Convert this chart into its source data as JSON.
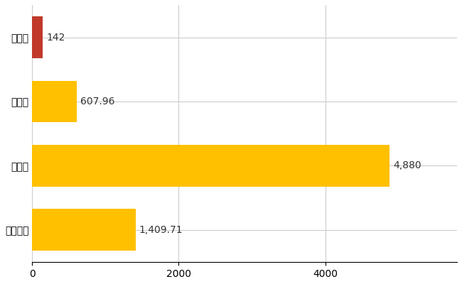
{
  "categories": [
    "那賀町",
    "県平均",
    "県最大",
    "全国平均"
  ],
  "values": [
    142,
    607.96,
    4880,
    1409.71
  ],
  "colors": [
    "#C0392B",
    "#FFC000",
    "#FFC000",
    "#FFC000"
  ],
  "labels": [
    "142",
    "607.96",
    "4,880",
    "1,409.71"
  ],
  "xlim": [
    0,
    5800
  ],
  "xticks": [
    0,
    2000,
    4000
  ],
  "grid_color": "#CCCCCC",
  "background_color": "#FFFFFF",
  "label_fontsize": 10,
  "tick_fontsize": 10,
  "bar_height": 0.65,
  "figsize": [
    6.5,
    4.0
  ],
  "dpi": 100
}
